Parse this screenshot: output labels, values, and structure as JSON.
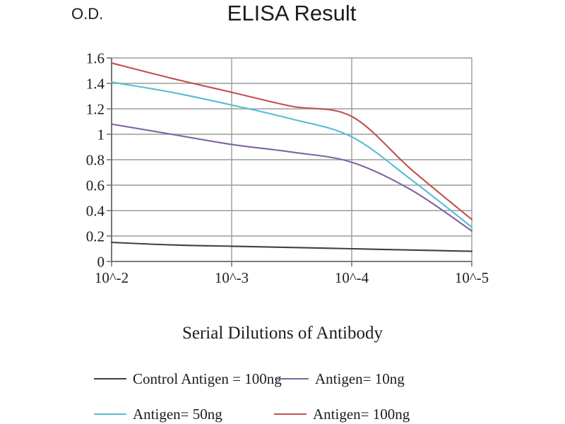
{
  "header": {
    "title": "ELISA Result",
    "y_axis_corner_label": "O.D."
  },
  "chart_data": {
    "type": "line",
    "title": "ELISA Result",
    "xlabel": "Serial Dilutions of Antibody",
    "ylabel": "O.D.",
    "x": [
      2,
      2.5,
      3,
      3.5,
      4,
      4.5,
      5
    ],
    "x_tick_exponents": [
      2,
      3,
      4,
      5
    ],
    "x_tick_labels": [
      "10^-2",
      "10^-3",
      "10^-4",
      "10^-5"
    ],
    "y_ticks": [
      0,
      0.2,
      0.4,
      0.6,
      0.8,
      1,
      1.2,
      1.4,
      1.6
    ],
    "ylim": [
      0,
      1.6
    ],
    "grid": true,
    "legend_position": "bottom",
    "series": [
      {
        "name": "Control Antigen = 100ng",
        "color": "#404040",
        "values": [
          0.15,
          0.13,
          0.12,
          0.11,
          0.1,
          0.09,
          0.08
        ]
      },
      {
        "name": "Antigen= 10ng",
        "color": "#8064a2",
        "values": [
          1.08,
          1.0,
          0.92,
          0.86,
          0.78,
          0.56,
          0.24
        ]
      },
      {
        "name": "Antigen= 50ng",
        "color": "#58bcd4",
        "values": [
          1.41,
          1.33,
          1.23,
          1.12,
          0.98,
          0.64,
          0.27
        ]
      },
      {
        "name": "Antigen= 100ng",
        "color": "#c0504d",
        "values": [
          1.56,
          1.44,
          1.33,
          1.22,
          1.14,
          0.72,
          0.33
        ]
      }
    ]
  },
  "colors": {
    "grid": "#9b9b9b",
    "axis": "#6e6e6e",
    "text": "#1c1c1c"
  }
}
